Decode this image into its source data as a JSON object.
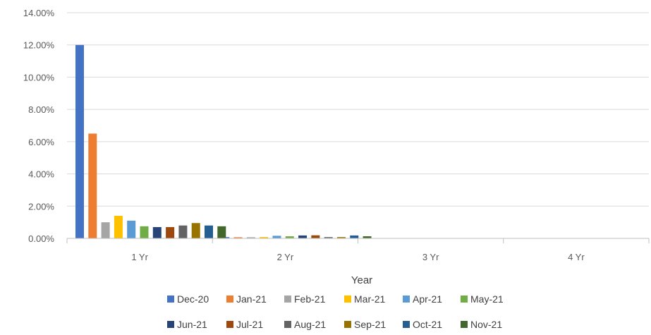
{
  "chart_data": {
    "type": "bar",
    "title": "",
    "xlabel": "Year",
    "ylabel": "",
    "ylim": [
      0,
      0.14
    ],
    "yticks": [
      0,
      0.02,
      0.04,
      0.06,
      0.08,
      0.1,
      0.12,
      0.14
    ],
    "ytick_labels": [
      "0.00%",
      "2.00%",
      "4.00%",
      "6.00%",
      "8.00%",
      "10.00%",
      "12.00%",
      "14.00%"
    ],
    "grid": true,
    "legend_position": "bottom",
    "categories": [
      "1 Yr",
      "2 Yr",
      "3 Yr",
      "4 Yr"
    ],
    "series": [
      {
        "name": "Dec-20",
        "color": "#4472C4",
        "values": [
          0.12,
          0.0008,
          0,
          0
        ]
      },
      {
        "name": "Jan-21",
        "color": "#ED7D31",
        "values": [
          0.065,
          0.0007,
          0,
          0
        ]
      },
      {
        "name": "Feb-21",
        "color": "#A5A5A5",
        "values": [
          0.01,
          0.0007,
          0,
          0
        ]
      },
      {
        "name": "Mar-21",
        "color": "#FFC000",
        "values": [
          0.014,
          0.0008,
          0,
          0
        ]
      },
      {
        "name": "Apr-21",
        "color": "#5B9BD5",
        "values": [
          0.011,
          0.0016,
          0,
          0
        ]
      },
      {
        "name": "May-21",
        "color": "#70AD47",
        "values": [
          0.0075,
          0.0013,
          0,
          0
        ]
      },
      {
        "name": "Jun-21",
        "color": "#264478",
        "values": [
          0.007,
          0.0018,
          0,
          0
        ]
      },
      {
        "name": "Jul-21",
        "color": "#9E480E",
        "values": [
          0.007,
          0.0019,
          0,
          0
        ]
      },
      {
        "name": "Aug-21",
        "color": "#636363",
        "values": [
          0.008,
          0.0008,
          0,
          0
        ]
      },
      {
        "name": "Sep-21",
        "color": "#997300",
        "values": [
          0.0095,
          0.0008,
          0,
          0
        ]
      },
      {
        "name": "Oct-21",
        "color": "#255E91",
        "values": [
          0.008,
          0.0018,
          0,
          0
        ]
      },
      {
        "name": "Nov-21",
        "color": "#43682B",
        "values": [
          0.0075,
          0.0013,
          0,
          0
        ]
      }
    ]
  }
}
